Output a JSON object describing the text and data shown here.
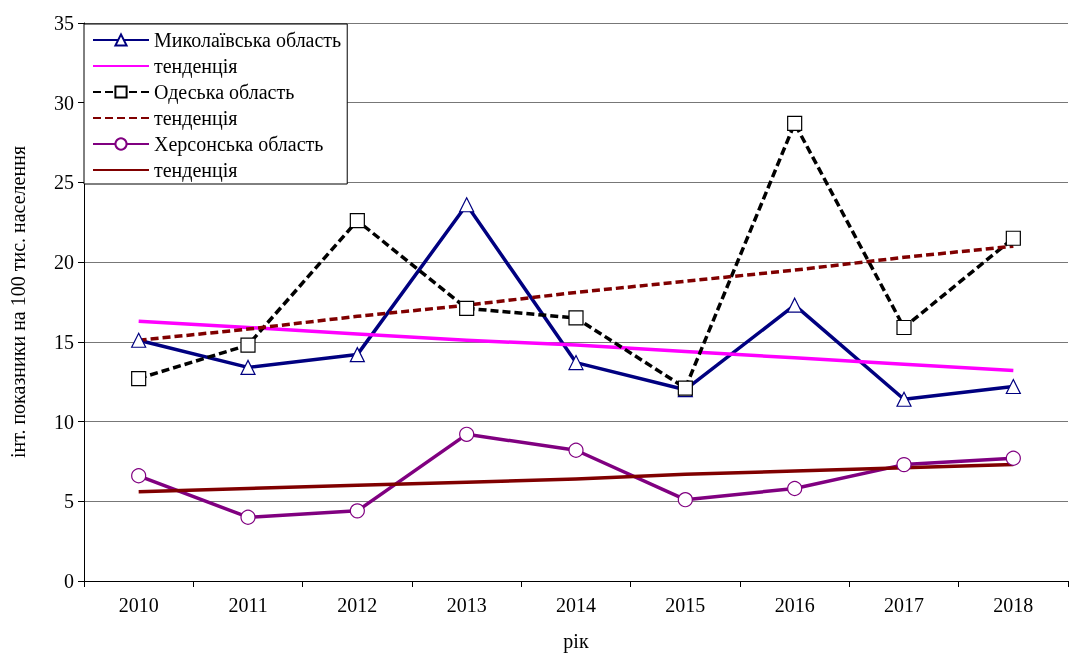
{
  "chart_data": {
    "type": "line",
    "xlabel": "рік",
    "ylabel": "інт. показники на 100 тис. населення",
    "categories": [
      "2010",
      "2011",
      "2012",
      "2013",
      "2014",
      "2015",
      "2016",
      "2017",
      "2018"
    ],
    "ylim": [
      0,
      35
    ],
    "yticks": [
      0,
      5,
      10,
      15,
      20,
      25,
      30,
      35
    ],
    "grid": "y",
    "legend": "top left",
    "series": [
      {
        "name": "Миколаївська область",
        "color": "#000080",
        "marker": "triangle",
        "line_style": "solid",
        "values": [
          15.1,
          13.4,
          14.2,
          23.6,
          13.7,
          12.0,
          17.3,
          11.4,
          12.2
        ]
      },
      {
        "name": "тенденція",
        "color": "#ff00ff",
        "marker": "none",
        "line_style": "solid",
        "values": [
          16.3,
          15.9,
          15.5,
          15.1,
          14.8,
          14.4,
          14.0,
          13.6,
          13.2
        ]
      },
      {
        "name": "Одеська область",
        "color": "#000000",
        "marker": "square",
        "line_style": "dashed",
        "values": [
          12.7,
          14.8,
          22.6,
          17.1,
          16.5,
          12.1,
          28.7,
          15.9,
          21.5
        ]
      },
      {
        "name": "тенденція",
        "color": "#800000",
        "marker": "none",
        "line_style": "dashed",
        "values": [
          15.1,
          15.8,
          16.6,
          17.3,
          18.1,
          18.8,
          19.5,
          20.3,
          21.0
        ]
      },
      {
        "name": "Херсонська область",
        "color": "#800080",
        "marker": "circle",
        "line_style": "solid",
        "values": [
          6.6,
          4.0,
          4.4,
          9.2,
          8.2,
          5.1,
          5.8,
          7.3,
          7.7
        ]
      },
      {
        "name": "тенденція",
        "color": "#800000",
        "marker": "none",
        "line_style": "solid",
        "values": [
          5.6,
          5.8,
          6.0,
          6.2,
          6.4,
          6.7,
          6.9,
          7.1,
          7.3
        ]
      }
    ]
  }
}
